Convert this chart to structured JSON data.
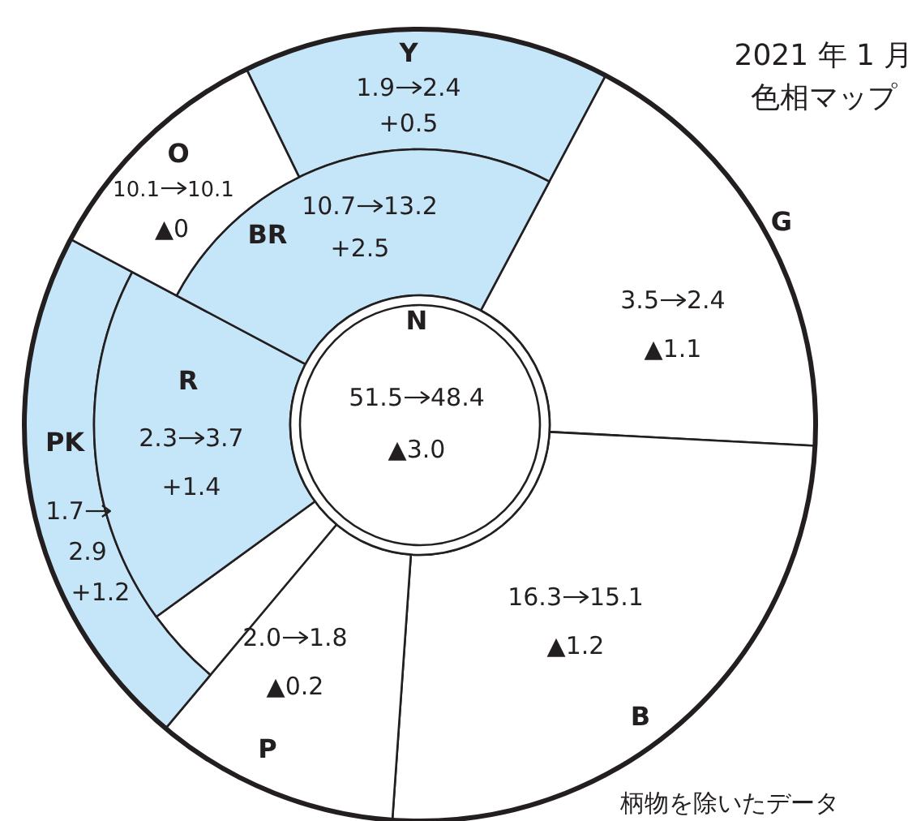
{
  "chart_data": {
    "type": "other",
    "title": "2021 年 1 月",
    "subtitle": "色相マップ",
    "annotations": [
      "柄物を除いたデータ"
    ],
    "categories": [
      "N",
      "Y",
      "G",
      "B",
      "P",
      "PK",
      "R",
      "BR",
      "O"
    ],
    "data_labels": true,
    "series": [
      {
        "values": [
          51.5,
          1.9,
          3.5,
          16.3,
          2.0,
          1.7,
          2.3,
          10.7,
          10.1
        ],
        "value_labels": [
          "51.5",
          "1.9",
          "3.5",
          "16.3",
          "2.0",
          "1.7",
          "2.3",
          "10.7",
          "10.1"
        ],
        "colors": [
          "#ffffff",
          "#c5e6f8",
          "#ffffff",
          "#ffffff",
          "#ffffff",
          "#c5e6f8",
          "#c5e6f8",
          "#c5e6f8",
          "#ffffff"
        ]
      },
      {
        "values": [
          48.4,
          2.4,
          2.4,
          15.1,
          1.8,
          2.9,
          3.7,
          13.2,
          10.1
        ]
      }
    ],
    "value_labels": [
      "▲3.0",
      "+0.5",
      "▲1.1",
      "▲1.2",
      "▲0.2",
      "+1.2",
      "+1.4",
      "+2.5",
      "▲0"
    ]
  }
}
